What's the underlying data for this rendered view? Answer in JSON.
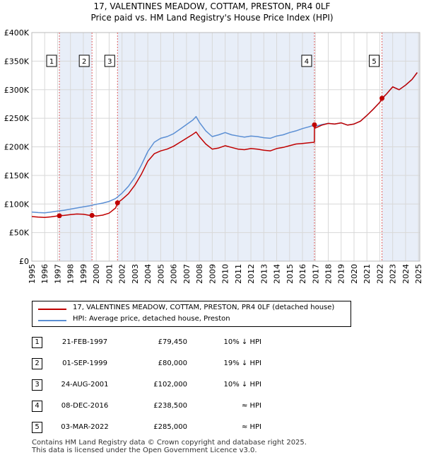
{
  "title_line1": "17, VALENTINES MEADOW, COTTAM, PRESTON, PR4 0LF",
  "title_line2": "Price paid vs. HM Land Registry's House Price Index (HPI)",
  "colors": {
    "property": "#c00000",
    "hpi": "#5b8fd4",
    "shade": "#e8eef8",
    "grid": "#d8d8d8",
    "marker_line": "#e06060"
  },
  "chart_data": {
    "type": "line",
    "xlim": [
      1995,
      2025.1
    ],
    "ylim": [
      0,
      400000
    ],
    "y_ticks": [
      0,
      50000,
      100000,
      150000,
      200000,
      250000,
      300000,
      350000,
      400000
    ],
    "y_tick_labels": [
      "£0",
      "£50K",
      "£100K",
      "£150K",
      "£200K",
      "£250K",
      "£300K",
      "£350K",
      "£400K"
    ],
    "x_ticks": [
      1995,
      1996,
      1997,
      1998,
      1999,
      2000,
      2001,
      2002,
      2003,
      2004,
      2005,
      2006,
      2007,
      2008,
      2009,
      2010,
      2011,
      2012,
      2013,
      2014,
      2015,
      2016,
      2017,
      2018,
      2019,
      2020,
      2021,
      2022,
      2023,
      2024,
      2025
    ],
    "x_tick_labels": [
      "1995",
      "1996",
      "1997",
      "1998",
      "1999",
      "2000",
      "2001",
      "2002",
      "2003",
      "2004",
      "2005",
      "2006",
      "2007",
      "2008",
      "2009",
      "2010",
      "2011",
      "2012",
      "2013",
      "2014",
      "2015",
      "2016",
      "2017",
      "2018",
      "2019",
      "2020",
      "2021",
      "2022",
      "2023",
      "2024",
      "2025"
    ],
    "grid": true,
    "series": [
      {
        "name": "17, VALENTINES MEADOW, COTTAM, PRESTON, PR4 0LF (detached house)",
        "color": "#c00000",
        "points": [
          [
            1995.0,
            78000
          ],
          [
            1995.5,
            77000
          ],
          [
            1996.0,
            76500
          ],
          [
            1996.5,
            77500
          ],
          [
            1997.14,
            79450
          ],
          [
            1997.5,
            80000
          ],
          [
            1998.0,
            81500
          ],
          [
            1998.5,
            82500
          ],
          [
            1999.0,
            82000
          ],
          [
            1999.5,
            80000
          ],
          [
            1999.67,
            80000
          ],
          [
            2000.0,
            79000
          ],
          [
            2000.5,
            80500
          ],
          [
            2001.0,
            84000
          ],
          [
            2001.5,
            93000
          ],
          [
            2001.65,
            102000
          ],
          [
            2002.0,
            108000
          ],
          [
            2002.5,
            118000
          ],
          [
            2003.0,
            133000
          ],
          [
            2003.5,
            152000
          ],
          [
            2004.0,
            175000
          ],
          [
            2004.5,
            188000
          ],
          [
            2005.0,
            193000
          ],
          [
            2005.5,
            196000
          ],
          [
            2006.0,
            201000
          ],
          [
            2006.5,
            208000
          ],
          [
            2007.0,
            215000
          ],
          [
            2007.5,
            222000
          ],
          [
            2007.75,
            226000
          ],
          [
            2008.0,
            218000
          ],
          [
            2008.5,
            205000
          ],
          [
            2009.0,
            196000
          ],
          [
            2009.5,
            198000
          ],
          [
            2010.0,
            202000
          ],
          [
            2010.5,
            199000
          ],
          [
            2011.0,
            196000
          ],
          [
            2011.5,
            195000
          ],
          [
            2012.0,
            197000
          ],
          [
            2012.5,
            196000
          ],
          [
            2013.0,
            194000
          ],
          [
            2013.5,
            193000
          ],
          [
            2014.0,
            197000
          ],
          [
            2014.5,
            199000
          ],
          [
            2015.0,
            202000
          ],
          [
            2015.5,
            205000
          ],
          [
            2016.0,
            206000
          ],
          [
            2016.5,
            207000
          ],
          [
            2016.92,
            208000
          ],
          [
            2016.93,
            238500
          ],
          [
            2017.0,
            233000
          ],
          [
            2017.5,
            238000
          ],
          [
            2018.0,
            241000
          ],
          [
            2018.5,
            240000
          ],
          [
            2019.0,
            242000
          ],
          [
            2019.5,
            238000
          ],
          [
            2020.0,
            240000
          ],
          [
            2020.5,
            245000
          ],
          [
            2021.0,
            255000
          ],
          [
            2021.5,
            266000
          ],
          [
            2022.0,
            278000
          ],
          [
            2022.17,
            285000
          ],
          [
            2022.5,
            292000
          ],
          [
            2023.0,
            305000
          ],
          [
            2023.5,
            300000
          ],
          [
            2024.0,
            308000
          ],
          [
            2024.5,
            318000
          ],
          [
            2024.9,
            330000
          ]
        ]
      },
      {
        "name": "HPI: Average price, detached house, Preston",
        "color": "#5b8fd4",
        "points": [
          [
            1995.0,
            86000
          ],
          [
            1995.5,
            85000
          ],
          [
            1996.0,
            84500
          ],
          [
            1996.5,
            86000
          ],
          [
            1997.0,
            87500
          ],
          [
            1997.5,
            89000
          ],
          [
            1998.0,
            91000
          ],
          [
            1998.5,
            93000
          ],
          [
            1999.0,
            95000
          ],
          [
            1999.5,
            97000
          ],
          [
            2000.0,
            99500
          ],
          [
            2000.5,
            101500
          ],
          [
            2001.0,
            104500
          ],
          [
            2001.5,
            109500
          ],
          [
            2002.0,
            119000
          ],
          [
            2002.5,
            131000
          ],
          [
            2003.0,
            147000
          ],
          [
            2003.5,
            168000
          ],
          [
            2004.0,
            192000
          ],
          [
            2004.5,
            208000
          ],
          [
            2005.0,
            215000
          ],
          [
            2005.5,
            218000
          ],
          [
            2006.0,
            223000
          ],
          [
            2006.5,
            231000
          ],
          [
            2007.0,
            239000
          ],
          [
            2007.5,
            247000
          ],
          [
            2007.75,
            253000
          ],
          [
            2008.0,
            243000
          ],
          [
            2008.5,
            228000
          ],
          [
            2009.0,
            218000
          ],
          [
            2009.5,
            221000
          ],
          [
            2010.0,
            225000
          ],
          [
            2010.5,
            221000
          ],
          [
            2011.0,
            219000
          ],
          [
            2011.5,
            217000
          ],
          [
            2012.0,
            219000
          ],
          [
            2012.5,
            218000
          ],
          [
            2013.0,
            216000
          ],
          [
            2013.5,
            215000
          ],
          [
            2014.0,
            219000
          ],
          [
            2014.5,
            221000
          ],
          [
            2015.0,
            225000
          ],
          [
            2015.5,
            228000
          ],
          [
            2016.0,
            232000
          ],
          [
            2016.5,
            235000
          ],
          [
            2016.92,
            238000
          ],
          [
            2017.0,
            236000
          ],
          [
            2017.5,
            239000
          ],
          [
            2018.0,
            241000
          ],
          [
            2018.5,
            240000
          ],
          [
            2019.0,
            242000
          ],
          [
            2019.5,
            238000
          ],
          [
            2020.0,
            240000
          ],
          [
            2020.5,
            245000
          ],
          [
            2021.0,
            255000
          ],
          [
            2021.5,
            266000
          ],
          [
            2022.0,
            278000
          ],
          [
            2022.17,
            284000
          ],
          [
            2022.5,
            292000
          ],
          [
            2023.0,
            305000
          ],
          [
            2023.5,
            300000
          ],
          [
            2024.0,
            308000
          ],
          [
            2024.5,
            318000
          ],
          [
            2024.9,
            330000
          ]
        ]
      }
    ],
    "shaded_ranges": [
      [
        1997.14,
        1999.67
      ],
      [
        2001.65,
        2016.93
      ],
      [
        2022.17,
        2025.1
      ]
    ],
    "sales": [
      {
        "num": "1",
        "year": 1997.14,
        "price": 79450
      },
      {
        "num": "2",
        "year": 1999.67,
        "price": 80000
      },
      {
        "num": "3",
        "year": 2001.65,
        "price": 102000
      },
      {
        "num": "4",
        "year": 2016.93,
        "price": 238500
      },
      {
        "num": "5",
        "year": 2022.17,
        "price": 285000
      }
    ]
  },
  "legend": {
    "property": "17, VALENTINES MEADOW, COTTAM, PRESTON, PR4 0LF (detached house)",
    "hpi": "HPI: Average price, detached house, Preston"
  },
  "sales_table": [
    {
      "num": "1",
      "date": "21-FEB-1997",
      "price": "£79,450",
      "hpi": "10% ↓ HPI"
    },
    {
      "num": "2",
      "date": "01-SEP-1999",
      "price": "£80,000",
      "hpi": "19% ↓ HPI"
    },
    {
      "num": "3",
      "date": "24-AUG-2001",
      "price": "£102,000",
      "hpi": "10% ↓ HPI"
    },
    {
      "num": "4",
      "date": "08-DEC-2016",
      "price": "£238,500",
      "hpi": "≈ HPI"
    },
    {
      "num": "5",
      "date": "03-MAR-2022",
      "price": "£285,000",
      "hpi": "≈ HPI"
    }
  ],
  "footer_line1": "Contains HM Land Registry data © Crown copyright and database right 2025.",
  "footer_line2": "This data is licensed under the Open Government Licence v3.0."
}
